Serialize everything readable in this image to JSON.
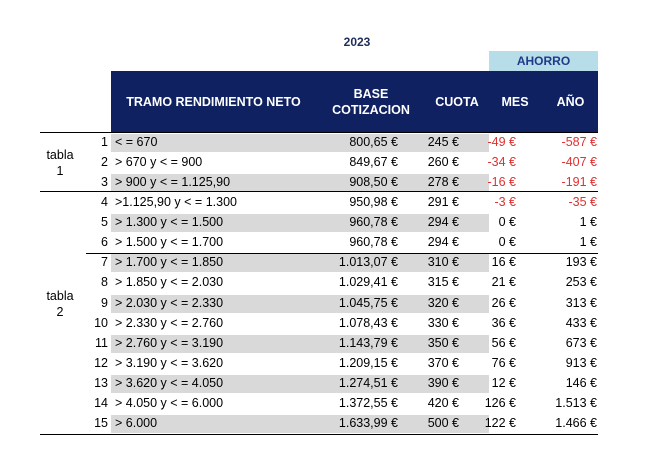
{
  "year": "2023",
  "ahorro": "AHORRO",
  "headers": {
    "tramo": "TRAMO RENDIMIENTO NETO",
    "base_1": "BASE",
    "base_2": "COTIZACION",
    "cuota": "CUOTA",
    "mes": "MES",
    "anio": "AÑO"
  },
  "groups": [
    {
      "label_1": "tabla",
      "label_2": "1"
    },
    {
      "label_1": "tabla",
      "label_2": "2"
    }
  ],
  "colors": {
    "header": "#0f2161",
    "ahorro": "#b7dde8",
    "negative": "#e03030",
    "stripe": "#d9d9d9"
  },
  "rows": [
    {
      "n": "1",
      "tramo": "< = 670",
      "base": "800,65 €",
      "cuota": "245 €",
      "mes": "-49 €",
      "anio": "-587 €"
    },
    {
      "n": "2",
      "tramo": "> 670 y < = 900",
      "base": "849,67 €",
      "cuota": "260 €",
      "mes": "-34 €",
      "anio": "-407 €"
    },
    {
      "n": "3",
      "tramo": "> 900 y < = 1.125,90",
      "base": "908,50 €",
      "cuota": "278 €",
      "mes": "-16 €",
      "anio": "-191 €"
    },
    {
      "n": "4",
      "tramo": ">1.125,90 y < = 1.300",
      "base": "950,98 €",
      "cuota": "291 €",
      "mes": "-3 €",
      "anio": "-35 €"
    },
    {
      "n": "5",
      "tramo": "> 1.300 y < = 1.500",
      "base": "960,78 €",
      "cuota": "294 €",
      "mes": "0 €",
      "anio": "1 €"
    },
    {
      "n": "6",
      "tramo": "> 1.500 y < = 1.700",
      "base": "960,78 €",
      "cuota": "294 €",
      "mes": "0 €",
      "anio": "1 €"
    },
    {
      "n": "7",
      "tramo": "> 1.700 y < = 1.850",
      "base": "1.013,07 €",
      "cuota": "310 €",
      "mes": "16 €",
      "anio": "193 €"
    },
    {
      "n": "8",
      "tramo": "> 1.850 y < = 2.030",
      "base": "1.029,41 €",
      "cuota": "315 €",
      "mes": "21 €",
      "anio": "253 €"
    },
    {
      "n": "9",
      "tramo": "> 2.030 y < = 2.330",
      "base": "1.045,75 €",
      "cuota": "320 €",
      "mes": "26 €",
      "anio": "313 €"
    },
    {
      "n": "10",
      "tramo": "> 2.330 y < = 2.760",
      "base": "1.078,43 €",
      "cuota": "330 €",
      "mes": "36 €",
      "anio": "433 €"
    },
    {
      "n": "11",
      "tramo": "> 2.760 y < = 3.190",
      "base": "1.143,79 €",
      "cuota": "350 €",
      "mes": "56 €",
      "anio": "673 €"
    },
    {
      "n": "12",
      "tramo": "> 3.190 y < = 3.620",
      "base": "1.209,15 €",
      "cuota": "370 €",
      "mes": "76 €",
      "anio": "913 €"
    },
    {
      "n": "13",
      "tramo": "> 3.620 y < = 4.050",
      "base": "1.274,51 €",
      "cuota": "390 €",
      "mes": "12 €",
      "anio": "146 €"
    },
    {
      "n": "14",
      "tramo": "> 4.050 y  < = 6.000",
      "base": "1.372,55 €",
      "cuota": "420 €",
      "mes": "126 €",
      "anio": "1.513 €"
    },
    {
      "n": "15",
      "tramo": "> 6.000",
      "base": "1.633,99 €",
      "cuota": "500 €",
      "mes": "122 €",
      "anio": "1.466 €"
    }
  ]
}
